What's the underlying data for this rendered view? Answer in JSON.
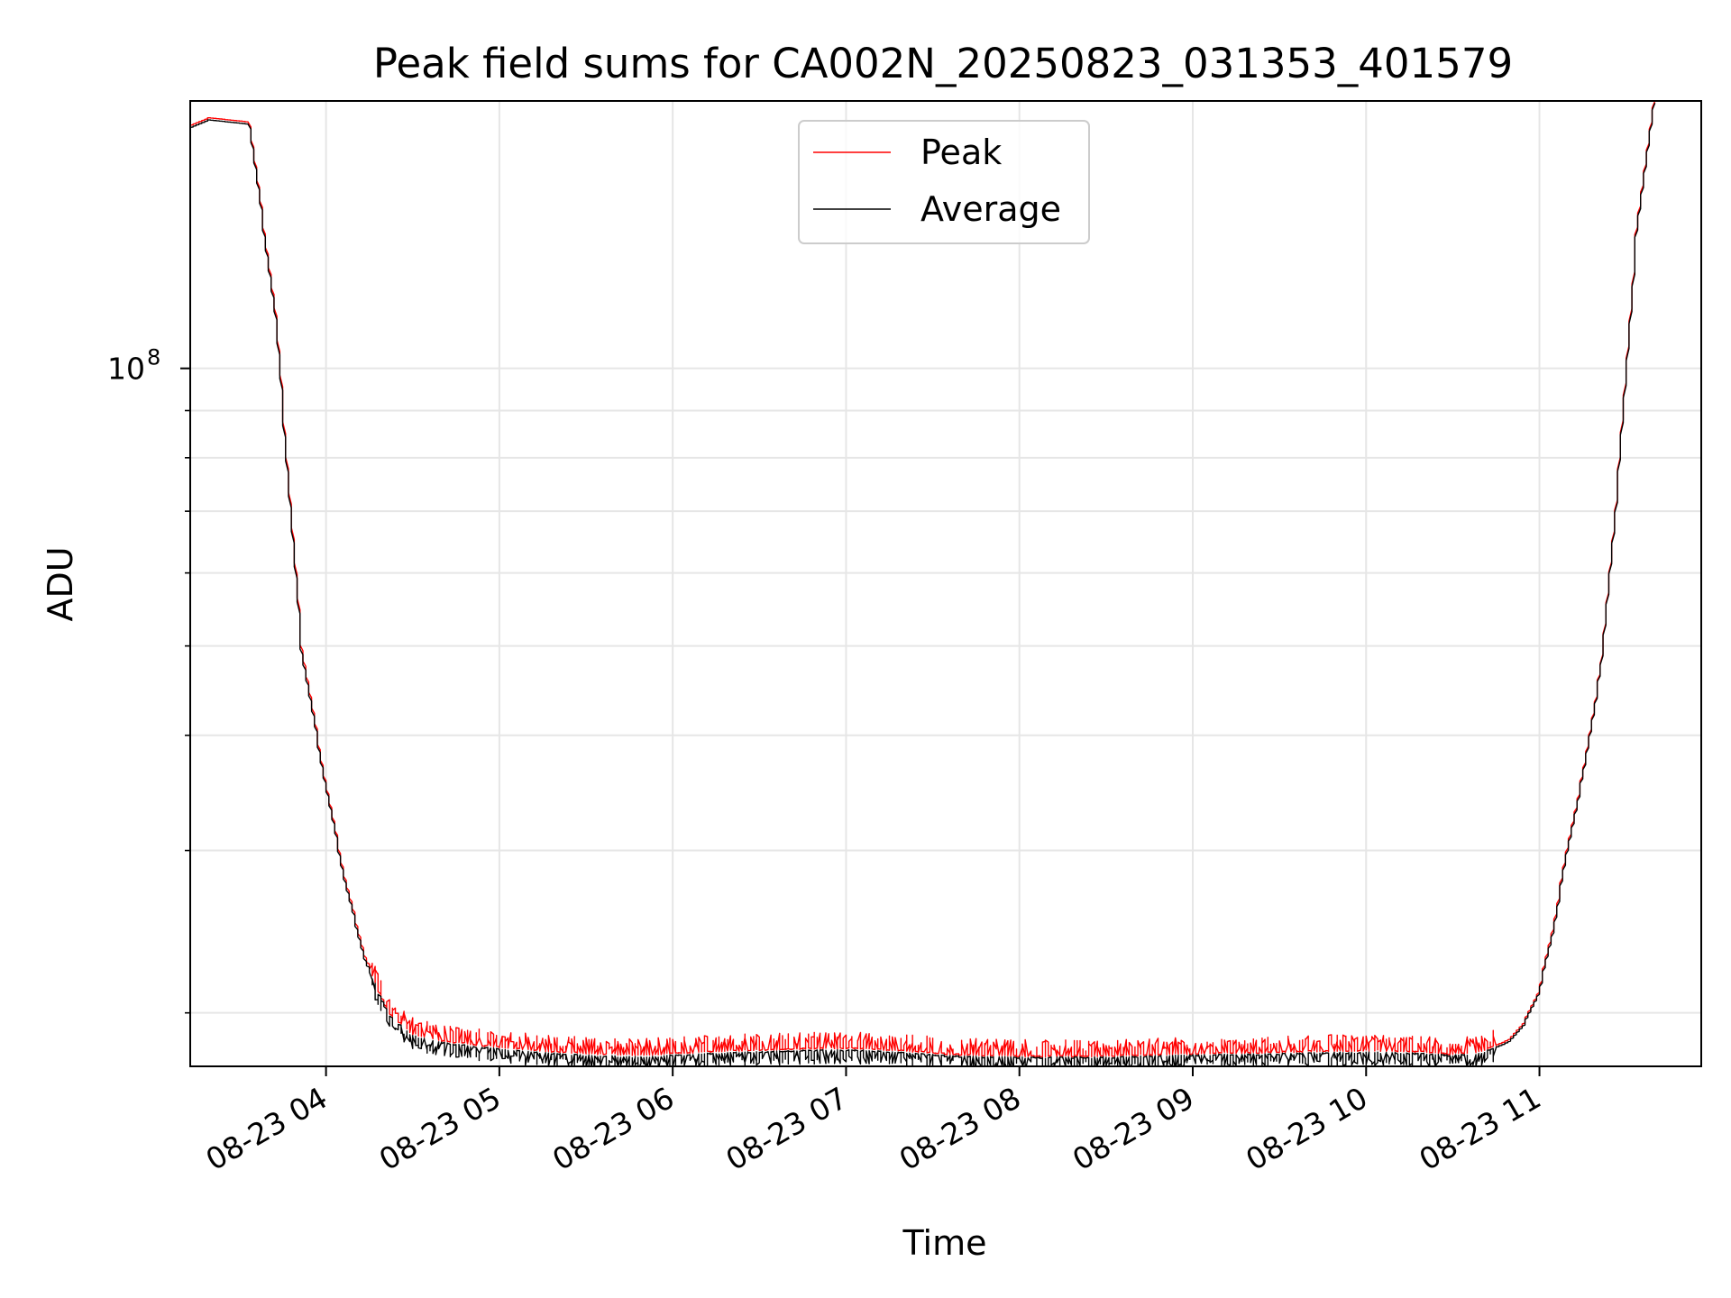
{
  "chart_data": {
    "type": "line",
    "title": "Peak field sums for CA002N_20250823_031353_401579",
    "xlabel": "Time",
    "ylabel": "ADU",
    "x_axis": {
      "kind": "time",
      "range": [
        "2025-08-23T03:13",
        "2025-08-23T11:56"
      ],
      "ticks": [
        {
          "value": "2025-08-23T04:00",
          "label": "08-23 04"
        },
        {
          "value": "2025-08-23T05:00",
          "label": "08-23 05"
        },
        {
          "value": "2025-08-23T06:00",
          "label": "08-23 06"
        },
        {
          "value": "2025-08-23T07:00",
          "label": "08-23 07"
        },
        {
          "value": "2025-08-23T08:00",
          "label": "08-23 08"
        },
        {
          "value": "2025-08-23T09:00",
          "label": "08-23 09"
        },
        {
          "value": "2025-08-23T10:00",
          "label": "08-23 10"
        },
        {
          "value": "2025-08-23T11:00",
          "label": "08-23 11"
        }
      ]
    },
    "y_axis": {
      "scale": "log",
      "range": [
        17500000,
        195000000
      ],
      "major_ticks": [
        {
          "value": 100000000,
          "base": "10",
          "exp": "8"
        }
      ],
      "minor_ticks": [
        20000000,
        30000000,
        40000000,
        50000000,
        60000000,
        70000000,
        80000000,
        90000000,
        200000000
      ]
    },
    "grid": true,
    "legend": {
      "position": "top-center"
    },
    "series": [
      {
        "name": "Peak",
        "color": "#ff0000",
        "x": [
          "2025-08-23T03:13",
          "2025-08-23T03:20",
          "2025-08-23T03:34",
          "2025-08-23T03:43",
          "2025-08-23T03:52",
          "2025-08-23T04:00",
          "2025-08-23T04:07",
          "2025-08-23T04:14",
          "2025-08-23T04:22",
          "2025-08-23T04:30",
          "2025-08-23T04:38",
          "2025-08-23T04:50",
          "2025-08-23T05:05",
          "2025-08-23T05:20",
          "2025-08-23T05:35",
          "2025-08-23T05:50",
          "2025-08-23T06:05",
          "2025-08-23T06:20",
          "2025-08-23T06:35",
          "2025-08-23T06:50",
          "2025-08-23T07:05",
          "2025-08-23T07:20",
          "2025-08-23T07:35",
          "2025-08-23T07:50",
          "2025-08-23T08:05",
          "2025-08-23T08:20",
          "2025-08-23T08:35",
          "2025-08-23T08:50",
          "2025-08-23T09:05",
          "2025-08-23T09:20",
          "2025-08-23T09:35",
          "2025-08-23T09:50",
          "2025-08-23T10:05",
          "2025-08-23T10:20",
          "2025-08-23T10:30",
          "2025-08-23T10:40",
          "2025-08-23T10:50",
          "2025-08-23T10:55",
          "2025-08-23T11:00",
          "2025-08-23T11:05",
          "2025-08-23T11:10",
          "2025-08-23T11:16",
          "2025-08-23T11:22",
          "2025-08-23T11:28",
          "2025-08-23T11:34",
          "2025-08-23T11:40"
        ],
        "values": [
          183000000,
          187000000,
          185000000,
          115000000,
          50000000,
          36000000,
          28000000,
          23000000,
          20000000,
          19000000,
          18700000,
          18500000,
          18300000,
          18150000,
          18050000,
          18000000,
          18100000,
          18200000,
          18250000,
          18300000,
          18300000,
          18200000,
          18050000,
          17980000,
          17950000,
          17950000,
          17980000,
          18020000,
          18080000,
          18100000,
          18150000,
          18200000,
          18200000,
          18150000,
          18050000,
          18150000,
          18700000,
          19500000,
          21000000,
          24500000,
          30000000,
          37000000,
          48000000,
          78000000,
          140000000,
          195000000
        ],
        "spikes": "frequent upward spikes of roughly +2% to +4% from about 04:15 to 10:45"
      },
      {
        "name": "Average",
        "color": "#000000",
        "x": [
          "2025-08-23T03:13",
          "2025-08-23T03:20",
          "2025-08-23T03:34",
          "2025-08-23T03:43",
          "2025-08-23T03:52",
          "2025-08-23T04:00",
          "2025-08-23T04:07",
          "2025-08-23T04:14",
          "2025-08-23T04:22",
          "2025-08-23T04:30",
          "2025-08-23T04:38",
          "2025-08-23T04:50",
          "2025-08-23T05:05",
          "2025-08-23T05:20",
          "2025-08-23T05:35",
          "2025-08-23T05:50",
          "2025-08-23T06:05",
          "2025-08-23T06:20",
          "2025-08-23T06:35",
          "2025-08-23T06:50",
          "2025-08-23T07:05",
          "2025-08-23T07:20",
          "2025-08-23T07:35",
          "2025-08-23T07:50",
          "2025-08-23T08:05",
          "2025-08-23T08:20",
          "2025-08-23T08:35",
          "2025-08-23T08:50",
          "2025-08-23T09:05",
          "2025-08-23T09:20",
          "2025-08-23T09:35",
          "2025-08-23T09:50",
          "2025-08-23T10:05",
          "2025-08-23T10:20",
          "2025-08-23T10:30",
          "2025-08-23T10:40",
          "2025-08-23T10:50",
          "2025-08-23T10:55",
          "2025-08-23T11:00",
          "2025-08-23T11:05",
          "2025-08-23T11:10",
          "2025-08-23T11:16",
          "2025-08-23T11:22",
          "2025-08-23T11:28",
          "2025-08-23T11:34",
          "2025-08-23T11:40"
        ],
        "values": [
          182000000,
          186000000,
          184000000,
          114000000,
          49500000,
          35800000,
          27800000,
          22800000,
          19900000,
          18900000,
          18600000,
          18400000,
          18200000,
          18050000,
          17950000,
          17900000,
          18000000,
          18100000,
          18150000,
          18200000,
          18200000,
          18100000,
          17950000,
          17900000,
          17880000,
          17880000,
          17900000,
          17950000,
          18000000,
          18020000,
          18050000,
          18100000,
          18100000,
          18050000,
          17980000,
          18050000,
          18600000,
          19400000,
          20900000,
          24300000,
          29800000,
          36800000,
          47800000,
          77500000,
          139000000,
          194000000
        ],
        "spikes": "frequent downward dips of roughly -2% to -4% from about 04:15 to 10:45"
      }
    ]
  }
}
